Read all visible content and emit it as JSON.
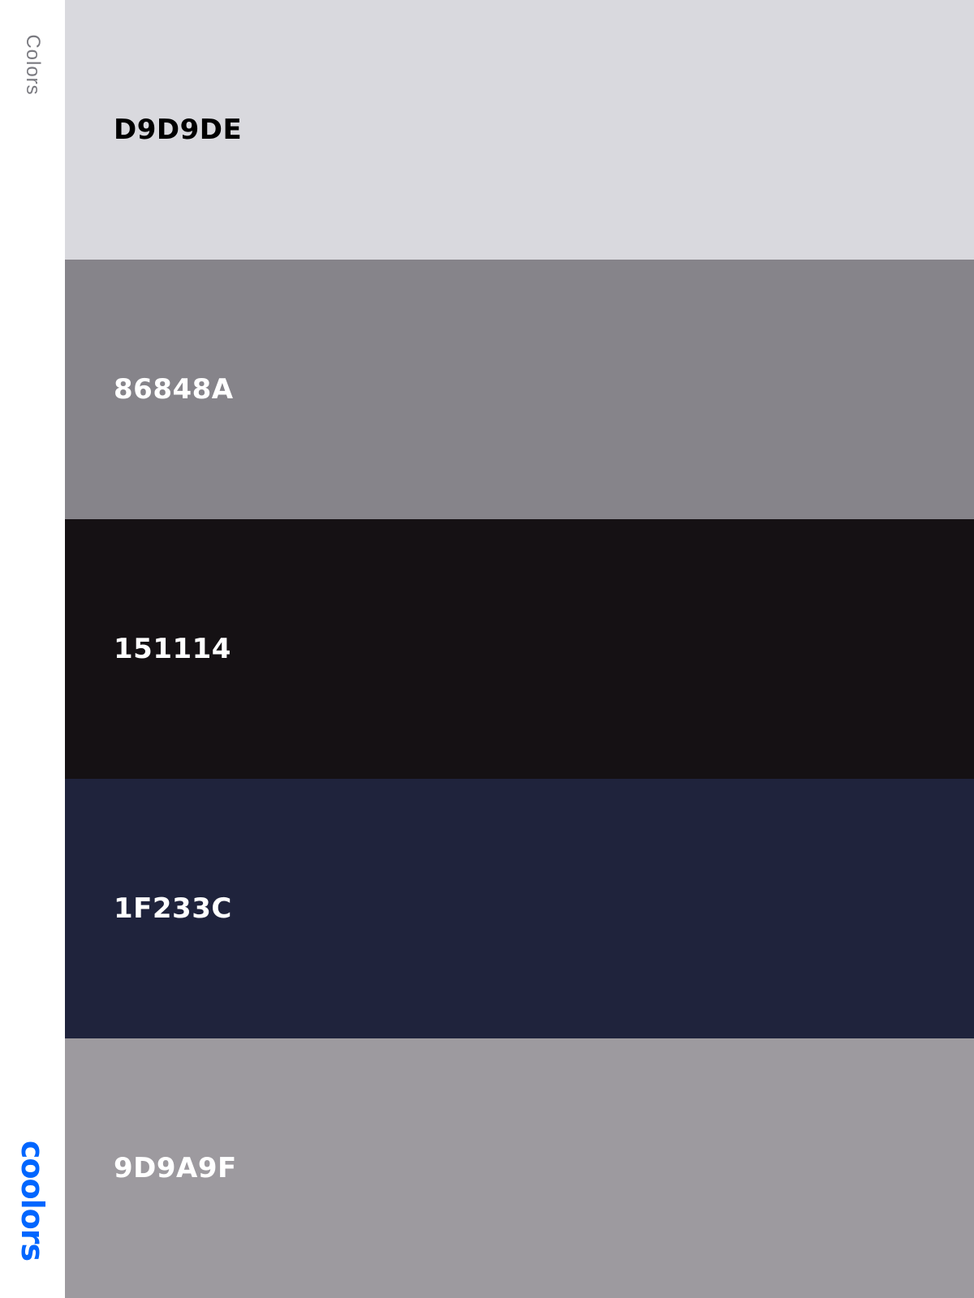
{
  "sidebar": {
    "label": "Colors",
    "brand": "coolors",
    "brand_color": "#0066FF"
  },
  "palette": {
    "swatches": [
      {
        "hex": "D9D9DE",
        "background": "#D9D9DE",
        "text_color": "#000000"
      },
      {
        "hex": "86848A",
        "background": "#86848A",
        "text_color": "#FFFFFF"
      },
      {
        "hex": "151114",
        "background": "#151114",
        "text_color": "#FFFFFF"
      },
      {
        "hex": "1F233C",
        "background": "#1F233C",
        "text_color": "#FFFFFF"
      },
      {
        "hex": "9D9A9F",
        "background": "#9D9A9F",
        "text_color": "#FFFFFF"
      }
    ]
  }
}
